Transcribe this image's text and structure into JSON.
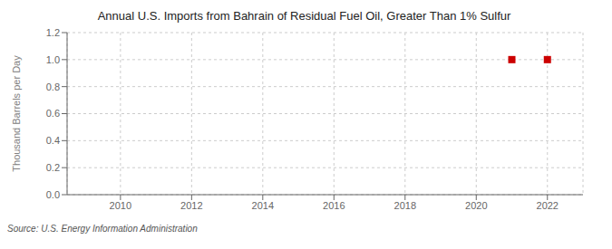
{
  "chart_data": {
    "type": "scatter",
    "title": "Annual U.S. Imports from Bahrain of Residual Fuel Oil, Greater Than 1% Sulfur",
    "y_label": "Thousand Barrels per Day",
    "annotation": "Source: U.S. Energy Information Administration",
    "x": [
      2021,
      2022
    ],
    "values": [
      1.0,
      1.0
    ],
    "color": "#cc0000",
    "marker": "square",
    "xlim": [
      2008.5,
      2023.0
    ],
    "ylim": [
      0.0,
      1.2
    ],
    "xticks": [
      2010,
      2012,
      2014,
      2016,
      2018,
      2020,
      2022
    ],
    "yticks": [
      {
        "value": 0,
        "label": "0.0"
      },
      0.2,
      0.4,
      0.6,
      0.8,
      {
        "value": 1,
        "label": "1.0"
      },
      1.2
    ],
    "grid": true
  }
}
